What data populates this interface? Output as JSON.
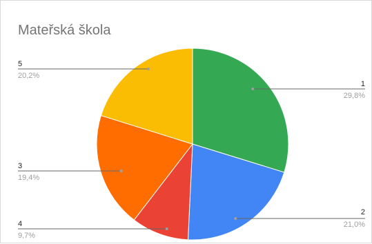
{
  "chart_data": {
    "type": "pie",
    "title": "Mateřská škola",
    "slices": [
      {
        "label": "1",
        "value": 29.8,
        "percent_label": "29,8%",
        "color": "#34a853"
      },
      {
        "label": "2",
        "value": 21.0,
        "percent_label": "21,0%",
        "color": "#4285f4"
      },
      {
        "label": "4",
        "value": 9.7,
        "percent_label": "9,7%",
        "color": "#ea4335"
      },
      {
        "label": "3",
        "value": 19.4,
        "percent_label": "19,4%",
        "color": "#ff6d01"
      },
      {
        "label": "5",
        "value": 20.2,
        "percent_label": "20,2%",
        "color": "#fbbc04"
      }
    ],
    "start_angle": "12 o'clock",
    "direction": "clockwise",
    "legend": "none",
    "labels_position": "outside-with-leader-lines"
  }
}
